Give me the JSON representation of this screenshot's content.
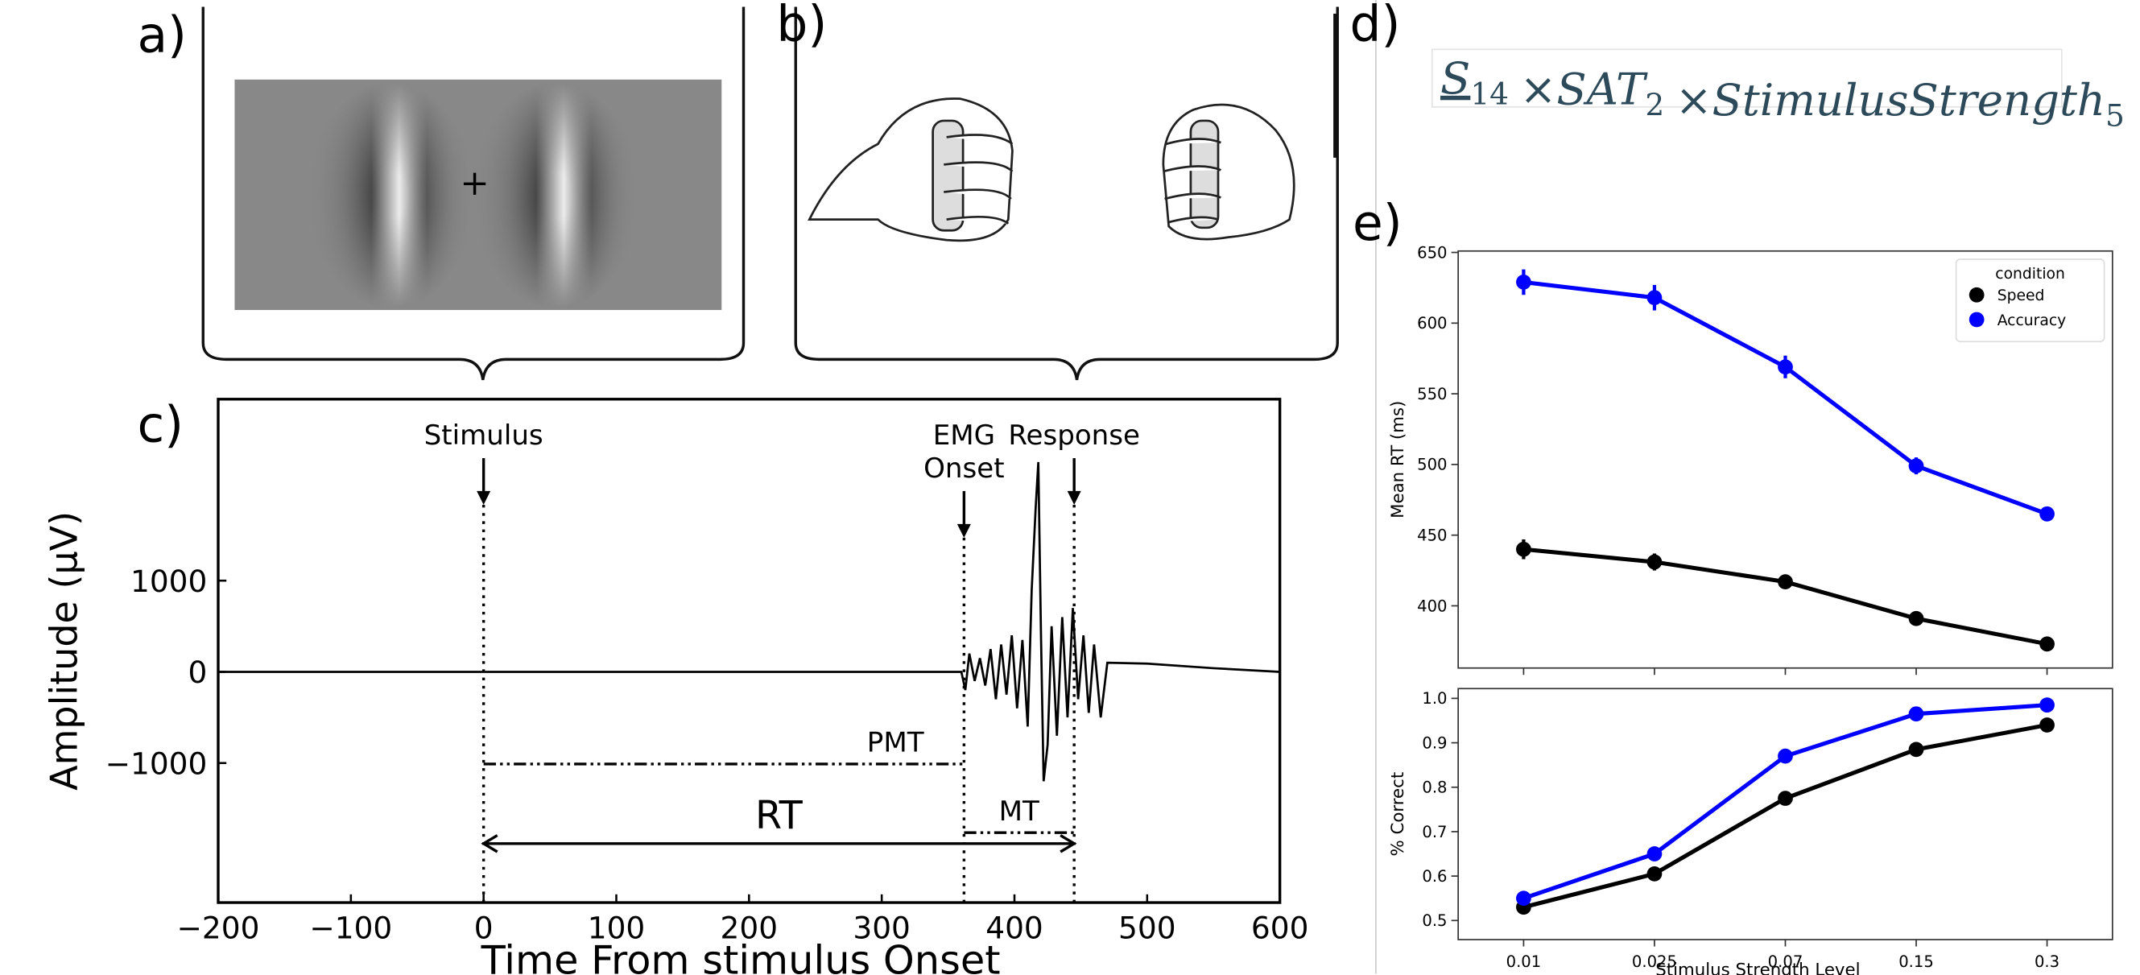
{
  "panel_labels": [
    "a)",
    "b)",
    "c)",
    "d)",
    "e)"
  ],
  "formula": {
    "terms": [
      {
        "base": "S",
        "sub": "14"
      },
      {
        "base": "SAT",
        "sub": "2"
      },
      {
        "base": "StimulusStrength",
        "sub": "5"
      }
    ],
    "operator": "×"
  },
  "chart_data": [
    {
      "type": "trace",
      "xlabel": "Time From stimulus Onset",
      "ylabel": "Amplitude (μV)",
      "x": [
        -200,
        -100,
        0,
        100,
        200,
        300,
        360,
        363,
        366,
        370,
        374,
        378,
        382,
        386,
        390,
        394,
        398,
        402,
        406,
        410,
        413,
        416,
        418,
        420,
        422,
        425,
        428,
        432,
        436,
        440,
        444,
        448,
        452,
        456,
        460,
        465,
        470,
        500,
        550,
        600
      ],
      "values": [
        0,
        0,
        0,
        0,
        0,
        0,
        0,
        -200,
        200,
        -100,
        150,
        -150,
        250,
        -300,
        300,
        -250,
        400,
        -400,
        350,
        -600,
        900,
        1800,
        2300,
        400,
        -1200,
        -800,
        500,
        -700,
        600,
        -500,
        700,
        -300,
        400,
        -450,
        300,
        -500,
        100,
        90,
        40,
        0
      ],
      "color": "#000000",
      "xlim": [
        -200,
        600
      ],
      "ylim": [
        -2530,
        2990
      ],
      "xticks": [
        {
          "value": -200,
          "label": "−200"
        },
        {
          "value": -100,
          "label": "−100"
        },
        0,
        100,
        200,
        300,
        400,
        500,
        600
      ],
      "yticks": [
        {
          "value": -1000,
          "label": "−1000"
        },
        0,
        1000
      ],
      "events": [
        {
          "label": [
            "Stimulus"
          ],
          "x": 0
        },
        {
          "label": [
            "EMG",
            "Onset"
          ],
          "x": 362
        },
        {
          "label": [
            "Response"
          ],
          "x": 445
        }
      ],
      "intervals": [
        {
          "label": "PMT",
          "from": 0,
          "to": 362
        },
        {
          "label": "MT",
          "from": 362,
          "to": 445
        },
        {
          "label": "RT",
          "from": 0,
          "to": 445
        }
      ]
    },
    {
      "type": "line",
      "ylabel": "Mean RT (ms)",
      "categories": [
        "0.01",
        "0.025",
        "0.07",
        "0.15",
        "0.3"
      ],
      "ylim": [
        356,
        651
      ],
      "yticks": [
        400,
        450,
        500,
        550,
        600,
        650
      ],
      "legend": "upper right",
      "legend_title": "condition",
      "series": [
        {
          "name": "Speed",
          "color": "#000000",
          "values": [
            440,
            431,
            417,
            391,
            373
          ],
          "errors": [
            7,
            6,
            5,
            4,
            4
          ]
        },
        {
          "name": "Accuracy",
          "color": "#0000ff",
          "values": [
            629,
            618,
            569,
            499,
            465
          ],
          "errors": [
            9,
            9,
            8,
            6,
            4
          ]
        }
      ]
    },
    {
      "type": "line",
      "ylabel": "% Correct",
      "xlabel": "Stimulus Strength Level",
      "categories": [
        "0.01",
        "0.025",
        "0.07",
        "0.15",
        "0.3"
      ],
      "ylim": [
        0.457,
        1.022
      ],
      "yticks": [
        0.5,
        0.6,
        0.7,
        0.8,
        0.9,
        {
          "value": 1.0,
          "label": "1.0"
        }
      ],
      "series": [
        {
          "name": "Speed",
          "color": "#000000",
          "values": [
            0.53,
            0.605,
            0.775,
            0.885,
            0.94
          ],
          "errors": [
            0.012,
            0.015,
            0.01,
            0.008,
            0.006
          ]
        },
        {
          "name": "Accuracy",
          "color": "#0000ff",
          "values": [
            0.55,
            0.65,
            0.87,
            0.965,
            0.985
          ],
          "errors": [
            0.01,
            0.01,
            0.008,
            0.006,
            0.005
          ]
        }
      ]
    }
  ]
}
